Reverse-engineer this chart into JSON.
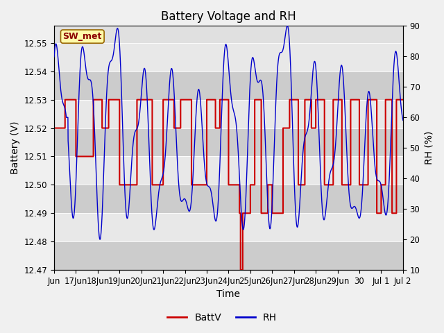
{
  "title": "Battery Voltage and RH",
  "xlabel": "Time",
  "ylabel_left": "Battery (V)",
  "ylabel_right": "RH (%)",
  "annotation": "SW_met",
  "ylim_left": [
    12.47,
    12.556
  ],
  "ylim_right": [
    10,
    90
  ],
  "yticks_left": [
    12.47,
    12.48,
    12.49,
    12.5,
    12.51,
    12.52,
    12.53,
    12.54,
    12.55
  ],
  "yticks_right": [
    10,
    20,
    30,
    40,
    50,
    60,
    70,
    80,
    90
  ],
  "bg_color": "#f0f0f0",
  "plot_bg_color": "#e0e0e0",
  "band_color_dark": "#cccccc",
  "band_color_light": "#e8e8e8",
  "battv_color": "#cc0000",
  "rh_color": "#0000cc",
  "legend_battv": "BattV",
  "legend_rh": "RH",
  "title_fontsize": 12,
  "label_fontsize": 10,
  "tick_fontsize": 8.5,
  "xtick_positions": [
    0,
    1,
    2,
    3,
    4,
    5,
    6,
    7,
    8,
    9,
    10,
    11,
    12,
    13,
    14,
    15,
    16
  ],
  "xtick_labels": [
    "Jun",
    "17Jun",
    "18Jun",
    "19Jun",
    "20Jun",
    "21Jun",
    "22Jun",
    "23Jun",
    "24Jun",
    "25Jun",
    "26Jun",
    "27Jun",
    "28Jun",
    "29Jun",
    "30",
    "Jul 1",
    "Jul 2"
  ]
}
